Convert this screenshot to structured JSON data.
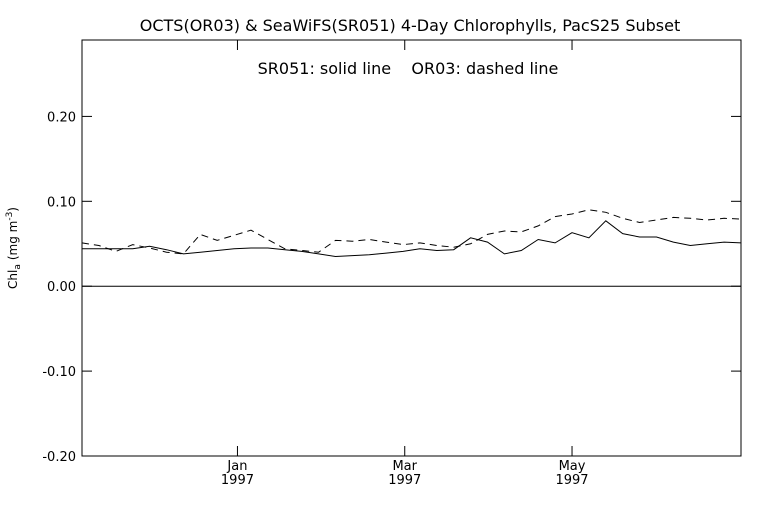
{
  "chart_data": {
    "type": "line",
    "title": "OCTS(OR03) & SeaWiFS(SR051) 4-Day Chlorophylls, PacS25 Subset",
    "annotation": "SR051: solid line    OR03: dashed line",
    "ylabel_main": "Chl",
    "ylabel_sub": "a",
    "ylabel_units": "(mg m",
    "ylabel_exp": "-3",
    "ylabel_close": ")",
    "ylim": [
      -0.2,
      0.29
    ],
    "yticks": [
      {
        "value": -0.2,
        "label": "-0.20"
      },
      {
        "value": -0.1,
        "label": "-0.10"
      },
      {
        "value": 0.0,
        "label": "0.00"
      },
      {
        "value": 0.1,
        "label": "0.10"
      },
      {
        "value": 0.2,
        "label": "0.20"
      }
    ],
    "xlim": [
      0,
      39
    ],
    "xticks": [
      {
        "pos": 9.2,
        "month": "Jan",
        "year": "1997"
      },
      {
        "pos": 19.1,
        "month": "Mar",
        "year": "1997"
      },
      {
        "pos": 29.0,
        "month": "May",
        "year": "1997"
      }
    ],
    "zero_line": true,
    "series": [
      {
        "name": "SR051",
        "style": "solid",
        "color": "#000000",
        "x": [
          0,
          1,
          2,
          3,
          4,
          5,
          6,
          7,
          8,
          9,
          10,
          11,
          12,
          13,
          14,
          15,
          16,
          17,
          18,
          19,
          20,
          21,
          22,
          23,
          24,
          25,
          26,
          27,
          28,
          29,
          30,
          31,
          32,
          33,
          34,
          35,
          36,
          37,
          38,
          39
        ],
        "values": [
          0.044,
          0.044,
          0.044,
          0.044,
          0.047,
          0.043,
          0.038,
          0.04,
          0.042,
          0.044,
          0.045,
          0.045,
          0.043,
          0.041,
          0.038,
          0.035,
          0.036,
          0.037,
          0.039,
          0.041,
          0.044,
          0.042,
          0.043,
          0.057,
          0.052,
          0.038,
          0.042,
          0.055,
          0.051,
          0.063,
          0.057,
          0.077,
          0.062,
          0.058,
          0.058,
          0.052,
          0.048,
          0.05,
          0.052,
          0.051
        ]
      },
      {
        "name": "OR03",
        "style": "dashed",
        "color": "#000000",
        "x": [
          0,
          1,
          2,
          3,
          4,
          5,
          6,
          7,
          8,
          9,
          10,
          11,
          12,
          13,
          14,
          15,
          16,
          17,
          18,
          19,
          20,
          21,
          22,
          23,
          24,
          25,
          26,
          27,
          28,
          29,
          30,
          31,
          32,
          33,
          34,
          35,
          36,
          37,
          38,
          39
        ],
        "values": [
          0.051,
          0.048,
          0.041,
          0.049,
          0.045,
          0.04,
          0.038,
          0.061,
          0.054,
          0.06,
          0.066,
          0.055,
          0.044,
          0.042,
          0.04,
          0.054,
          0.053,
          0.055,
          0.052,
          0.049,
          0.051,
          0.048,
          0.046,
          0.05,
          0.061,
          0.065,
          0.064,
          0.071,
          0.082,
          0.085,
          0.09,
          0.087,
          0.08,
          0.075,
          0.078,
          0.081,
          0.08,
          0.078,
          0.08,
          0.079
        ]
      }
    ]
  }
}
